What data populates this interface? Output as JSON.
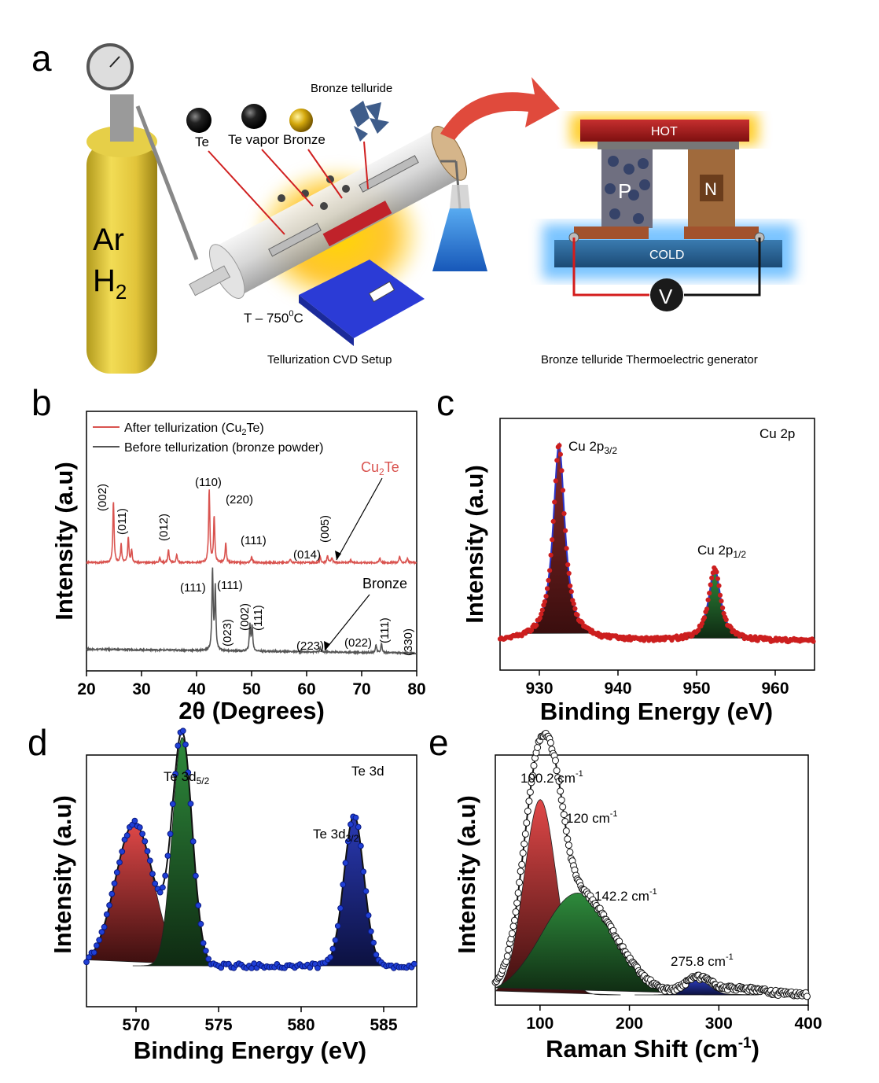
{
  "panel_labels": {
    "a": "a",
    "b": "b",
    "c": "c",
    "d": "d",
    "e": "e"
  },
  "colors": {
    "red": "#d9534f",
    "dark": "#555555",
    "blue": "#2b33c8",
    "fillRed": "#c0392b",
    "fillGreen": "#2e8b3c",
    "fillBlue": "#2a3ab5",
    "dots_c": "#cc1f1f",
    "dots_d": "#1f3fd6"
  },
  "schematic": {
    "gas_line1": "Ar",
    "gas_line2_main": "H",
    "gas_line2_sub": "2",
    "te_label": "Te",
    "te_vapor_label": "Te vapor",
    "bronze_label": "Bronze",
    "bronze_telluride_label": "Bronze telluride",
    "temp_main": "T – 750",
    "temp_sup": "0",
    "temp_unit": "C",
    "cvd_caption": "Tellurization  CVD Setup",
    "hot_label": "HOT",
    "cold_label": "COLD",
    "p_label": "P",
    "n_label": "N",
    "v_label": "V",
    "teg_caption": "Bronze telluride Thermoelectric generator"
  },
  "chart_data": [
    {
      "id": "b",
      "type": "line",
      "title": "",
      "xlabel": "2θ (Degrees)",
      "ylabel": "Intensity (a.u)",
      "xlim": [
        20,
        80
      ],
      "xticks": [
        "20",
        "30",
        "40",
        "50",
        "60",
        "70",
        "80"
      ],
      "legend": {
        "after": "After tellurization (Cu",
        "after_sub": "2",
        "after_end": "Te)",
        "before": "Before tellurization (bronze powder)"
      },
      "series": [
        {
          "name": "After tellurization (Cu2Te)",
          "color": "#d9534f",
          "offset": 0.55,
          "peaks": [
            [
              24.9,
              0.48
            ],
            [
              26.3,
              0.14
            ],
            [
              27.6,
              0.2
            ],
            [
              28.2,
              0.1
            ],
            [
              33.3,
              0.04
            ],
            [
              34.9,
              0.1
            ],
            [
              36.4,
              0.06
            ],
            [
              42.3,
              0.57
            ],
            [
              43.2,
              0.36
            ],
            [
              45.3,
              0.15
            ],
            [
              50.0,
              0.05
            ],
            [
              57.0,
              0.03
            ],
            [
              62.5,
              0.04
            ],
            [
              63.8,
              0.06
            ],
            [
              64.6,
              0.04
            ],
            [
              68.0,
              0.02
            ],
            [
              73.3,
              0.04
            ],
            [
              76.9,
              0.05
            ],
            [
              78.3,
              0.03
            ]
          ]
        },
        {
          "name": "Before tellurization (bronze powder)",
          "color": "#555555",
          "offset": 0.0,
          "peaks": [
            [
              42.9,
              0.62
            ],
            [
              43.4,
              0.48
            ],
            [
              49.7,
              0.2
            ],
            [
              50.1,
              0.19
            ],
            [
              62.5,
              0.03
            ],
            [
              72.6,
              0.06
            ],
            [
              73.6,
              0.07
            ]
          ]
        }
      ],
      "peak_labels_after": [
        "(002)",
        "(011)",
        "(012)",
        "(110)",
        "(220)",
        "(111)",
        "(014)",
        "(005)"
      ],
      "peak_labels_before": [
        "(111)",
        "(111)",
        "(023)",
        "(002)",
        "(111)",
        "(223)",
        "(022)",
        "(111)",
        "(330)"
      ],
      "series_tags": {
        "cu2te_main": "Cu",
        "cu2te_sub": "2",
        "cu2te_end": "Te",
        "bronze": "Bronze"
      }
    },
    {
      "id": "c",
      "type": "scatter",
      "title": "Cu 2p",
      "xlabel": "Binding Energy (eV)",
      "ylabel": "Intensity (a.u)",
      "xlim": [
        925,
        965
      ],
      "xticks": [
        "930",
        "940",
        "950",
        "960"
      ],
      "peaks": [
        {
          "center": 932.5,
          "height": 1.0,
          "width": 0.9,
          "fill": "#c0392b",
          "label": "Cu 2p",
          "label_sub": "3/2"
        },
        {
          "center": 952.3,
          "height": 0.37,
          "width": 0.9,
          "fill": "#2e8b3c",
          "label": "Cu 2p",
          "label_sub": "1/2"
        }
      ]
    },
    {
      "id": "d",
      "type": "scatter",
      "title": "Te 3d",
      "xlabel": "Binding Energy (eV)",
      "ylabel": "Intensity (a.u)",
      "xlim": [
        567,
        587
      ],
      "xticks": [
        "570",
        "575",
        "580",
        "585"
      ],
      "peaks": [
        {
          "center": 569.9,
          "height": 0.55,
          "width": 1.15,
          "fill": "#c0392b"
        },
        {
          "center": 572.8,
          "height": 0.88,
          "width": 0.6,
          "fill": "#2e8b3c",
          "label": "Te 3d",
          "label_sub": "5/2"
        },
        {
          "center": 583.2,
          "height": 0.58,
          "width": 0.6,
          "fill": "#2a3ab5",
          "label": "Te 3d",
          "label_sub": "3/2"
        }
      ]
    },
    {
      "id": "e",
      "type": "scatter",
      "title": "",
      "xlabel": "Raman Shift (cm",
      "xlabel_sup": "-1",
      "xlabel_end": ")",
      "ylabel": "Intensity (a.u)",
      "xlim": [
        50,
        400
      ],
      "xticks": [
        "100",
        "200",
        "300",
        "400"
      ],
      "peaks": [
        {
          "center": 100.2,
          "height": 0.92,
          "width": 18,
          "fill": "#c0392b",
          "label": "100.2 cm",
          "label_sup": "-1"
        },
        {
          "center": 120,
          "height": 0.0,
          "width": 10,
          "fill": "none",
          "label": "120 cm",
          "label_sup": "-1"
        },
        {
          "center": 142.2,
          "height": 0.48,
          "width": 40,
          "fill": "#2e8b3c",
          "label": "142.2 cm",
          "label_sup": "-1"
        },
        {
          "center": 275.8,
          "height": 0.07,
          "width": 14,
          "fill": "#2a3ab5",
          "label": "275.8 cm",
          "label_sup": "-1"
        }
      ]
    }
  ]
}
